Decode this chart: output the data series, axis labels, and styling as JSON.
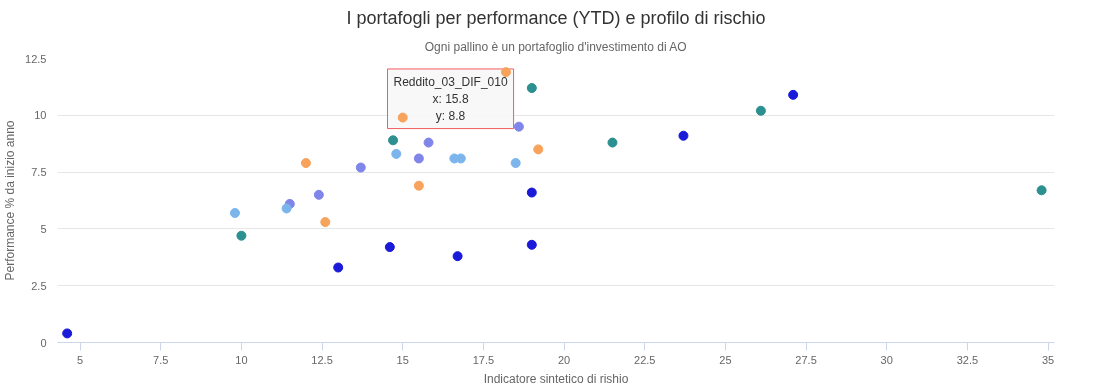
{
  "chart_data": {
    "type": "scatter",
    "title": "I portafogli per performance (YTD) e profilo di rischio",
    "subtitle": "Ogni pallino è un portafoglio d'investimento di AO",
    "xlabel": "Indicatore sintetico di rishio",
    "ylabel": "Performance % da inizio anno",
    "xlim": [
      4.3,
      35.2
    ],
    "ylim": [
      0,
      12.5
    ],
    "xticks": [
      5,
      7.5,
      10,
      12.5,
      15,
      17.5,
      20,
      22.5,
      25,
      27.5,
      30,
      32.5,
      35
    ],
    "yticks": [
      0,
      2.5,
      5,
      7.5,
      10,
      12.5
    ],
    "grid": "y",
    "marker": "circle",
    "series": [
      {
        "color": "#2b908f",
        "x": [
          10.0,
          14.7,
          19.0,
          21.5,
          26.1,
          34.8
        ],
        "values": [
          4.7,
          8.9,
          11.2,
          8.8,
          10.2,
          6.7
        ]
      },
      {
        "color": "#f7a35c",
        "x": [
          12.0,
          12.6,
          15.0,
          15.5,
          18.2,
          19.2
        ],
        "values": [
          7.9,
          5.3,
          9.9,
          6.9,
          11.9,
          8.5
        ]
      },
      {
        "color": "#8085e9",
        "x": [
          11.5,
          12.4,
          13.7,
          15.5,
          15.8,
          18.6
        ],
        "values": [
          6.1,
          6.5,
          7.7,
          8.1,
          8.8,
          9.5
        ]
      },
      {
        "color": "#7cb5ec",
        "x": [
          9.8,
          11.4,
          14.8,
          16.6,
          16.8,
          18.5
        ],
        "values": [
          5.7,
          5.9,
          8.3,
          8.1,
          8.1,
          7.9
        ]
      },
      {
        "color": "#1a1ad8",
        "x": [
          4.6,
          13.0,
          14.6,
          16.7,
          19.0,
          19.0,
          23.7,
          27.1
        ],
        "values": [
          0.4,
          3.3,
          4.2,
          3.8,
          6.6,
          4.3,
          9.1,
          10.9
        ]
      }
    ],
    "annotations": [
      {
        "text": "Reddito_03_DIF_010\nx: 15.8\ny: 8.8",
        "x": 15.8,
        "y": 8.8
      }
    ]
  }
}
